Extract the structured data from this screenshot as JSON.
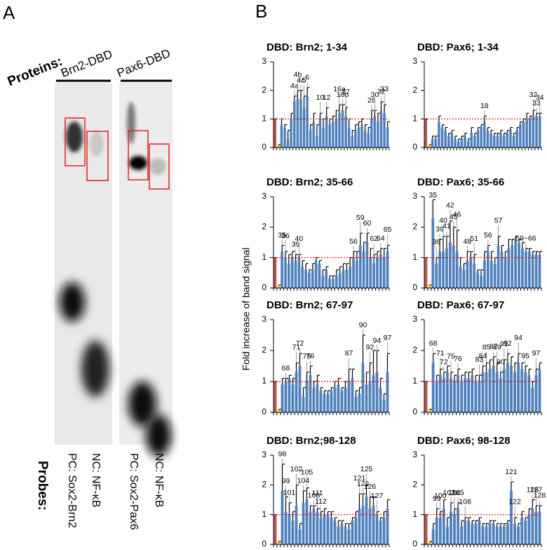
{
  "panels": {
    "a": "A",
    "b": "B"
  },
  "gel": {
    "proteins_label": "Proteins:",
    "proteins": [
      "Brn2-DBD",
      "Pax6-DBD"
    ],
    "probes_label": "Probes:",
    "probes": [
      "PC: Sox2-Brn2",
      "NC: NF-κB",
      "PC: Sox2-Pax6",
      "NC: NF-κB"
    ]
  },
  "shared_y_label": "Fold increase of band signal",
  "chart_data": [
    {
      "type": "bar",
      "title": "DBD: Brn2; 1-34",
      "color": "#4f81bd",
      "highlight_colors": [
        "#c0504d",
        "#ffc000"
      ],
      "reference_line": 1,
      "reference_color": "#ff0000",
      "ylim": [
        0,
        3
      ],
      "yticks": [
        0,
        1,
        2,
        3
      ],
      "values": [
        1.0,
        0.1,
        0.8,
        0.7,
        0.3,
        1.0,
        1.6,
        1.7,
        1.7,
        1.4,
        1.8,
        0.6,
        0.9,
        0.4,
        1.0,
        0.7,
        1.1,
        0.8,
        0.9,
        1.0,
        1.2,
        1.3,
        1.1,
        0.7,
        0.4,
        0.6,
        0.7,
        0.8,
        0.6,
        0.5,
        1.0,
        1.1,
        0.9,
        1.3,
        1.2,
        0.7
      ],
      "errors": [
        0.0,
        0.0,
        0.2,
        0.1,
        0.3,
        0.2,
        0.2,
        0.3,
        0.3,
        0.4,
        0.3,
        0.2,
        0.3,
        0.4,
        0.2,
        0.3,
        0.3,
        0.2,
        0.2,
        0.3,
        0.3,
        0.2,
        0.3,
        0.3,
        0.2,
        0.2,
        0.2,
        0.2,
        0.2,
        0.2,
        0.3,
        0.2,
        0.3,
        0.3,
        0.3,
        0.2
      ],
      "annotations": [
        {
          "text": "4a",
          "bar": 6
        },
        {
          "text": "4b",
          "bar": 7
        },
        {
          "text": "4c",
          "bar": 8
        },
        {
          "text": "5",
          "bar": 9
        },
        {
          "text": "6",
          "bar": 10
        },
        {
          "text": "10",
          "bar": 14
        },
        {
          "text": "12",
          "bar": 16
        },
        {
          "text": "16a",
          "bar": 20
        },
        {
          "text": "16b",
          "bar": 21
        },
        {
          "text": "17",
          "bar": 22
        },
        {
          "text": "26",
          "bar": 30
        },
        {
          "text": "30",
          "bar": 31
        },
        {
          "text": "32",
          "bar": 33
        },
        {
          "text": "33",
          "bar": 34
        }
      ]
    },
    {
      "type": "bar",
      "title": "DBD: Pax6; 1-34",
      "color": "#4f81bd",
      "highlight_colors": [
        "#c0504d",
        "#ffc000"
      ],
      "reference_line": 1,
      "reference_color": "#ff0000",
      "ylim": [
        0,
        3
      ],
      "yticks": [
        0,
        1,
        2,
        3
      ],
      "values": [
        1.0,
        0.1,
        0.3,
        0.3,
        0.9,
        0.7,
        0.6,
        0.4,
        0.5,
        0.3,
        0.2,
        0.3,
        0.4,
        0.2,
        0.5,
        0.4,
        0.6,
        0.7,
        0.9,
        0.6,
        0.5,
        0.4,
        0.4,
        0.5,
        0.4,
        0.5,
        0.6,
        0.4,
        0.6,
        0.8,
        0.9,
        1.0,
        1.0,
        1.1,
        1.1,
        1.1
      ],
      "errors": [
        0.0,
        0.0,
        0.1,
        0.1,
        0.2,
        0.1,
        0.1,
        0.1,
        0.1,
        0.1,
        0.1,
        0.1,
        0.1,
        0.1,
        0.2,
        0.1,
        0.1,
        0.1,
        0.2,
        0.1,
        0.1,
        0.1,
        0.1,
        0.1,
        0.1,
        0.1,
        0.1,
        0.1,
        0.1,
        0.1,
        0.1,
        0.2,
        0.1,
        0.2,
        0.1,
        0.1
      ],
      "annotations": [
        {
          "text": "18",
          "bar": 18
        },
        {
          "text": "32",
          "bar": 33
        },
        {
          "text": "33",
          "bar": 34
        },
        {
          "text": "34",
          "bar": 35
        }
      ]
    },
    {
      "type": "bar",
      "title": "DBD: Brn2; 35-66",
      "color": "#4f81bd",
      "highlight_colors": [
        "#c0504d",
        "#ffc000"
      ],
      "reference_line": 1,
      "reference_color": "#ff0000",
      "ylim": [
        0,
        3
      ],
      "yticks": [
        0,
        1,
        2,
        3
      ],
      "values": [
        1.0,
        0.1,
        1.2,
        1.0,
        0.8,
        1.0,
        0.9,
        1.0,
        0.7,
        0.6,
        0.5,
        0.6,
        0.9,
        0.8,
        0.4,
        0.6,
        0.3,
        0.3,
        0.4,
        0.5,
        0.6,
        0.6,
        0.7,
        1.0,
        0.9,
        1.4,
        1.2,
        1.5,
        1.0,
        0.8,
        1.0,
        1.1,
        1.0,
        1.2
      ],
      "errors": [
        0,
        0,
        0.2,
        0.2,
        0.3,
        0.2,
        0.2,
        0.1,
        0.2,
        0.2,
        0.1,
        0.2,
        0.1,
        0.1,
        0.2,
        0.1,
        0.1,
        0.1,
        0.2,
        0.2,
        0.2,
        0.2,
        0.3,
        0.2,
        0.3,
        0.4,
        0.3,
        0.3,
        0.3,
        0.3,
        0.2,
        0.2,
        0.3,
        0.2
      ],
      "annotations": [
        {
          "text": "35",
          "bar": 2
        },
        {
          "text": "36",
          "bar": 3
        },
        {
          "text": "39",
          "bar": 6
        },
        {
          "text": "40",
          "bar": 7
        },
        {
          "text": "56",
          "bar": 23
        },
        {
          "text": "59",
          "bar": 25
        },
        {
          "text": "60",
          "bar": 27
        },
        {
          "text": "62",
          "bar": 29
        },
        {
          "text": "64",
          "bar": 31
        },
        {
          "text": "65",
          "bar": 33
        }
      ]
    },
    {
      "type": "bar",
      "title": "DBD: Pax6; 35-66",
      "color": "#4f81bd",
      "highlight_colors": [
        "#c0504d",
        "#ffc000"
      ],
      "reference_line": 1,
      "reference_color": "#ff0000",
      "ylim": [
        0,
        3
      ],
      "yticks": [
        0,
        1,
        2,
        3
      ],
      "values": [
        1.0,
        0.1,
        2.3,
        0.8,
        1.2,
        1.2,
        1.3,
        1.5,
        1.4,
        1.2,
        0.7,
        0.6,
        0.9,
        1.0,
        0.8,
        0.5,
        0.4,
        0.9,
        1.2,
        0.9,
        0.8,
        1.4,
        1.2,
        1.0,
        1.3,
        1.4,
        1.6,
        1.5,
        1.3,
        1.2,
        1.2,
        1.1,
        1.1,
        1.1
      ],
      "errors": [
        0,
        0,
        0.6,
        0.2,
        0.4,
        0.5,
        0.4,
        0.7,
        0.6,
        0.7,
        0.3,
        0.2,
        0.3,
        0.2,
        0.3,
        0.1,
        0.2,
        0.3,
        0.2,
        0.3,
        0.2,
        0.3,
        0.2,
        0.2,
        0.3,
        0.2,
        0.1,
        0.1,
        0.2,
        0.1,
        0.1,
        0.1,
        0.1,
        0.1
      ],
      "annotations": [
        {
          "text": "35",
          "bar": 2
        },
        {
          "text": "36",
          "bar": 3
        },
        {
          "text": "39",
          "bar": 4
        },
        {
          "text": "40",
          "bar": 5
        },
        {
          "text": "41",
          "bar": 6
        },
        {
          "text": "42",
          "bar": 7
        },
        {
          "text": "45",
          "bar": 8
        },
        {
          "text": "46",
          "bar": 9
        },
        {
          "text": "48",
          "bar": 12
        },
        {
          "text": "51",
          "bar": 14
        },
        {
          "text": "56",
          "bar": 18
        },
        {
          "text": "57",
          "bar": 21
        },
        {
          "text": "59~66",
          "bar": 29
        }
      ]
    },
    {
      "type": "bar",
      "title": "DBD: Brn2; 67-97",
      "color": "#4f81bd",
      "highlight_colors": [
        "#c0504d",
        "#ffc000"
      ],
      "reference_line": 1,
      "reference_color": "#ff0000",
      "ylim": [
        0,
        3
      ],
      "yticks": [
        0,
        1,
        2,
        3
      ],
      "values": [
        1.0,
        0.1,
        0.9,
        1.0,
        1.1,
        0.9,
        1.3,
        1.5,
        0.5,
        1.0,
        1.2,
        0.8,
        0.9,
        0.7,
        0.6,
        0.6,
        0.7,
        0.8,
        0.9,
        0.7,
        0.8,
        1.0,
        1.1,
        0.5,
        0.6,
        1.6,
        0.9,
        1.0,
        1.2,
        1.3,
        0.8,
        0.4,
        1.3
      ],
      "errors": [
        0,
        0,
        0.2,
        0.1,
        0.1,
        0.2,
        0.3,
        0.4,
        0.3,
        0.3,
        0.3,
        0.2,
        0.3,
        0.1,
        0.1,
        0.1,
        0.1,
        0.2,
        0.2,
        0.1,
        0.2,
        0.4,
        0.3,
        0.2,
        0.2,
        0.9,
        0.4,
        0.6,
        0.8,
        0.7,
        0.3,
        0.2,
        0.6
      ],
      "annotations": [
        {
          "text": "68",
          "bar": 3
        },
        {
          "text": "71",
          "bar": 6
        },
        {
          "text": "72",
          "bar": 7
        },
        {
          "text": "75",
          "bar": 9
        },
        {
          "text": "76",
          "bar": 10
        },
        {
          "text": "87",
          "bar": 21
        },
        {
          "text": "90",
          "bar": 25
        },
        {
          "text": "92",
          "bar": 27
        },
        {
          "text": "94",
          "bar": 29
        },
        {
          "text": "97",
          "bar": 32
        }
      ]
    },
    {
      "type": "bar",
      "title": "DBD: Pax6; 67-97",
      "color": "#4f81bd",
      "highlight_colors": [
        "#c0504d",
        "#ffc000"
      ],
      "reference_line": 1,
      "reference_color": "#ff0000",
      "ylim": [
        0,
        3
      ],
      "yticks": [
        0,
        1,
        2,
        3
      ],
      "values": [
        1.0,
        0.1,
        1.6,
        1.0,
        1.2,
        1.1,
        1.3,
        1.1,
        1.0,
        1.2,
        1.0,
        1.1,
        1.1,
        1.2,
        1.0,
        1.0,
        1.3,
        1.3,
        1.4,
        1.5,
        1.3,
        1.1,
        1.4,
        1.6,
        1.5,
        1.3,
        1.6,
        1.4,
        1.3,
        1.2,
        0.8,
        1.2,
        1.4
      ],
      "errors": [
        0,
        0,
        0.3,
        0.2,
        0.2,
        0.2,
        0.2,
        0.2,
        0.2,
        0.2,
        0.2,
        0.2,
        0.2,
        0.2,
        0.2,
        0.2,
        0.2,
        0.3,
        0.3,
        0.3,
        0.3,
        0.2,
        0.3,
        0.3,
        0.3,
        0.3,
        0.3,
        0.2,
        0.2,
        0.2,
        0.2,
        0.2,
        0.2
      ],
      "annotations": [
        {
          "text": "68",
          "bar": 2
        },
        {
          "text": "71",
          "bar": 4
        },
        {
          "text": "72",
          "bar": 5
        },
        {
          "text": "75",
          "bar": 7
        },
        {
          "text": "76",
          "bar": 9
        },
        {
          "text": "83",
          "bar": 15
        },
        {
          "text": "84",
          "bar": 16
        },
        {
          "text": "85",
          "bar": 17
        },
        {
          "text": "87",
          "bar": 19
        },
        {
          "text": "89",
          "bar": 20
        },
        {
          "text": "90",
          "bar": 21
        },
        {
          "text": "91",
          "bar": 22
        },
        {
          "text": "92",
          "bar": 23
        },
        {
          "text": "94",
          "bar": 26
        },
        {
          "text": "95",
          "bar": 28
        },
        {
          "text": "97",
          "bar": 31
        }
      ]
    },
    {
      "type": "bar",
      "title": "DBD: Brn2;98-128",
      "color": "#4f81bd",
      "highlight_colors": [
        "#c0504d",
        "#ffc000"
      ],
      "reference_line": 1,
      "reference_color": "#ff0000",
      "ylim": [
        0,
        3
      ],
      "yticks": [
        0,
        1,
        2,
        3
      ],
      "values": [
        1.0,
        0.1,
        1.8,
        1.1,
        1.0,
        0.8,
        1.3,
        0.5,
        1.4,
        1.5,
        1.1,
        1.2,
        1.1,
        0.9,
        1.0,
        1.0,
        0.9,
        0.8,
        0.6,
        0.7,
        0.6,
        0.5,
        0.8,
        0.9,
        1.2,
        1.3,
        1.6,
        1.2,
        1.3,
        1.0,
        0.8,
        0.9,
        1.2
      ],
      "errors": [
        0,
        0,
        0.9,
        0.5,
        0.4,
        0.3,
        0.7,
        0.2,
        0.4,
        0.4,
        0.2,
        0.1,
        0.1,
        0.2,
        0.2,
        0.1,
        0.2,
        0.1,
        0.2,
        0.1,
        0.1,
        0.2,
        0.1,
        0.2,
        0.5,
        0.4,
        0.4,
        0.4,
        0.3,
        0.1,
        0.1,
        0.2,
        0.3
      ],
      "annotations": [
        {
          "text": "98",
          "bar": 2
        },
        {
          "text": "99",
          "bar": 3
        },
        {
          "text": "101",
          "bar": 4
        },
        {
          "text": "102",
          "bar": 6
        },
        {
          "text": "104",
          "bar": 8
        },
        {
          "text": "105",
          "bar": 9
        },
        {
          "text": "108",
          "bar": 11
        },
        {
          "text": "111",
          "bar": 12
        },
        {
          "text": "112",
          "bar": 13
        },
        {
          "text": "121",
          "bar": 24
        },
        {
          "text": "122",
          "bar": 25
        },
        {
          "text": "125",
          "bar": 26
        },
        {
          "text": "126",
          "bar": 27
        },
        {
          "text": "127",
          "bar": 29
        }
      ]
    },
    {
      "type": "bar",
      "title": "DBD: Pax6; 98-128",
      "color": "#4f81bd",
      "highlight_colors": [
        "#c0504d",
        "#ffc000"
      ],
      "reference_line": 1,
      "reference_color": "#ff0000",
      "ylim": [
        0,
        3
      ],
      "yticks": [
        0,
        1,
        2,
        3
      ],
      "values": [
        1.0,
        0.1,
        0.5,
        0.9,
        0.9,
        1.2,
        0.6,
        1.1,
        1.0,
        1.2,
        0.6,
        0.8,
        0.8,
        0.7,
        0.7,
        0.8,
        0.6,
        0.6,
        0.7,
        0.7,
        0.6,
        0.6,
        0.6,
        0.7,
        1.8,
        0.7,
        0.6,
        0.9,
        0.8,
        1.0,
        1.2,
        1.1,
        1.1
      ],
      "errors": [
        0,
        0,
        0.2,
        0.3,
        0.2,
        0.3,
        0.3,
        0.3,
        0.2,
        0.2,
        0.2,
        0.1,
        0.1,
        0.1,
        0.1,
        0.1,
        0.1,
        0.1,
        0.1,
        0.1,
        0.1,
        0.1,
        0.1,
        0.1,
        0.3,
        0.2,
        0.1,
        0.2,
        0.1,
        0.2,
        0.3,
        0.2,
        0.2
      ],
      "annotations": [
        {
          "text": "99",
          "bar": 3
        },
        {
          "text": "100",
          "bar": 4
        },
        {
          "text": "102c",
          "bar": 7
        },
        {
          "text": "104",
          "bar": 8
        },
        {
          "text": "105",
          "bar": 9
        },
        {
          "text": "108",
          "bar": 11
        },
        {
          "text": "121",
          "bar": 24
        },
        {
          "text": "122",
          "bar": 25
        },
        {
          "text": "126",
          "bar": 30
        },
        {
          "text": "127",
          "bar": 31
        },
        {
          "text": "128",
          "bar": 32
        }
      ]
    }
  ]
}
